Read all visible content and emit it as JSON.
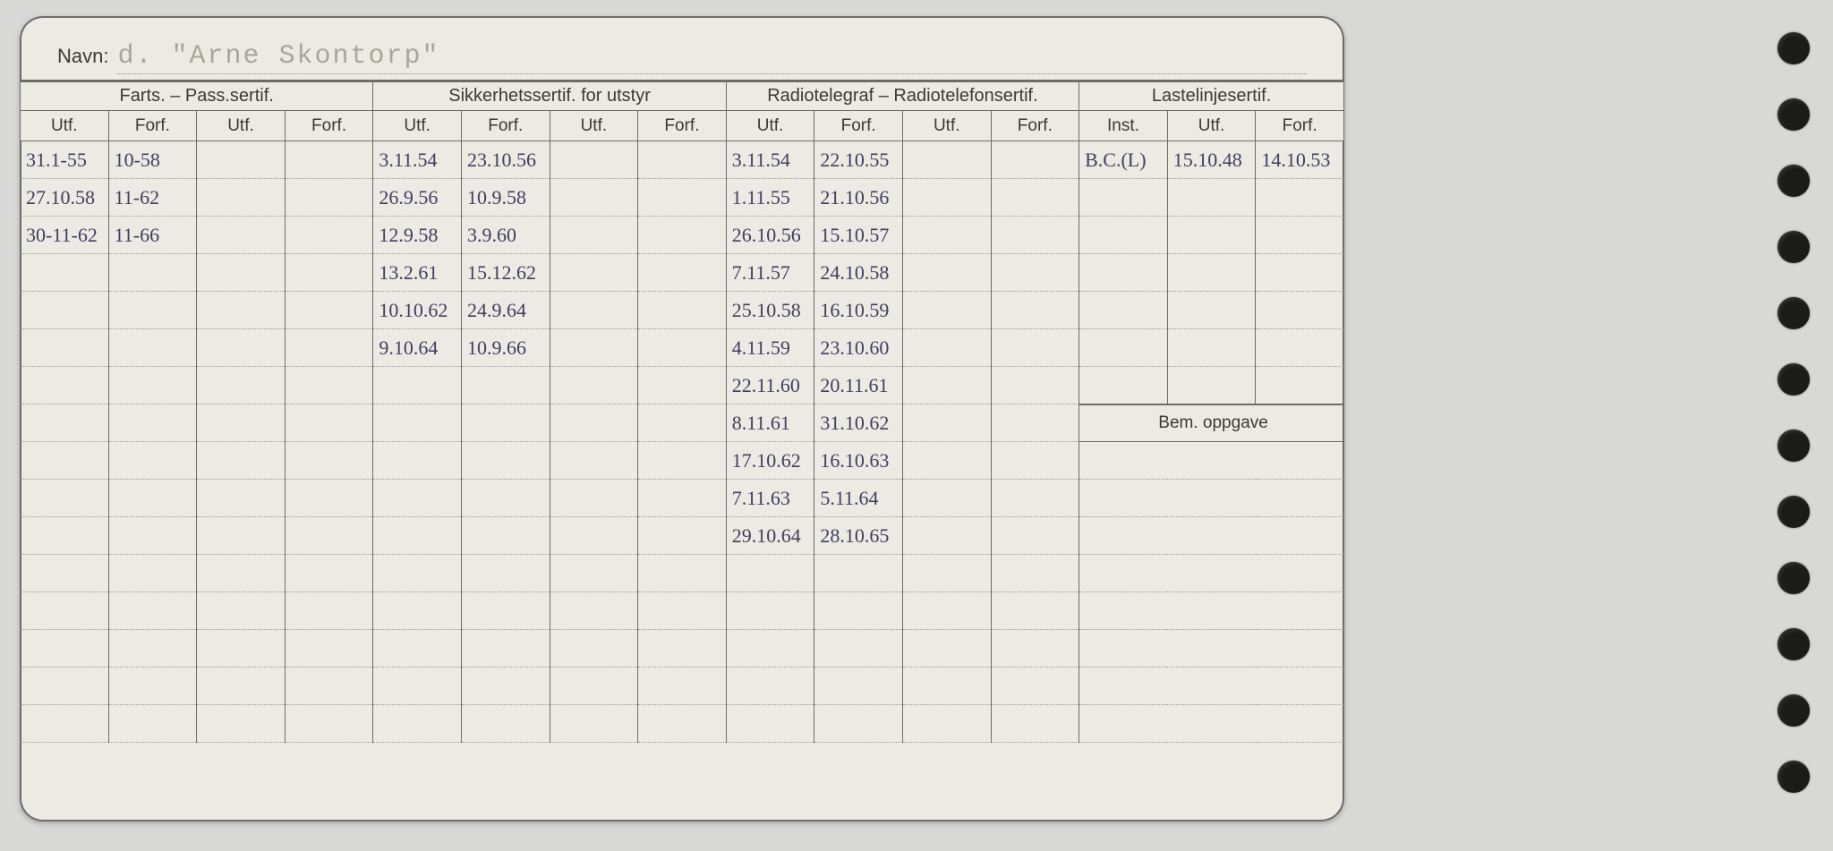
{
  "card": {
    "name_label": "Navn:",
    "name_value": "d.  \"Arne Skontorp\"",
    "groups": {
      "farts": "Farts. – Pass.sertif.",
      "sikker": "Sikkerhetssertif. for utstyr",
      "radio": "Radiotelegraf – Radiotelefonsertif.",
      "laste": "Lastelinjesertif."
    },
    "sub": {
      "utf": "Utf.",
      "forf": "Forf.",
      "inst": "Inst."
    },
    "bem": "Bem. oppgave",
    "rows": [
      {
        "f1": "31.1-55",
        "f2": "10-58",
        "f3": "",
        "f4": "",
        "s1": "3.11.54",
        "s2": "23.10.56",
        "s3": "",
        "s4": "",
        "r1": "3.11.54",
        "r2": "22.10.55",
        "r3": "",
        "r4": "",
        "l1": "B.C.(L)",
        "l2": "15.10.48",
        "l3": "14.10.53"
      },
      {
        "f1": "27.10.58",
        "f2": "11-62",
        "f3": "",
        "f4": "",
        "s1": "26.9.56",
        "s2": "10.9.58",
        "s3": "",
        "s4": "",
        "r1": "1.11.55",
        "r2": "21.10.56",
        "r3": "",
        "r4": "",
        "l1": "",
        "l2": "",
        "l3": ""
      },
      {
        "f1": "30-11-62",
        "f2": "11-66",
        "f3": "",
        "f4": "",
        "s1": "12.9.58",
        "s2": "3.9.60",
        "s3": "",
        "s4": "",
        "r1": "26.10.56",
        "r2": "15.10.57",
        "r3": "",
        "r4": "",
        "l1": "",
        "l2": "",
        "l3": ""
      },
      {
        "f1": "",
        "f2": "",
        "f3": "",
        "f4": "",
        "s1": "13.2.61",
        "s2": "15.12.62",
        "s3": "",
        "s4": "",
        "r1": "7.11.57",
        "r2": "24.10.58",
        "r3": "",
        "r4": "",
        "l1": "",
        "l2": "",
        "l3": ""
      },
      {
        "f1": "",
        "f2": "",
        "f3": "",
        "f4": "",
        "s1": "10.10.62",
        "s2": "24.9.64",
        "s3": "",
        "s4": "",
        "r1": "25.10.58",
        "r2": "16.10.59",
        "r3": "",
        "r4": "",
        "l1": "",
        "l2": "",
        "l3": ""
      },
      {
        "f1": "",
        "f2": "",
        "f3": "",
        "f4": "",
        "s1": "9.10.64",
        "s2": "10.9.66",
        "s3": "",
        "s4": "",
        "r1": "4.11.59",
        "r2": "23.10.60",
        "r3": "",
        "r4": "",
        "l1": "",
        "l2": "",
        "l3": ""
      },
      {
        "f1": "",
        "f2": "",
        "f3": "",
        "f4": "",
        "s1": "",
        "s2": "",
        "s3": "",
        "s4": "",
        "r1": "22.11.60",
        "r2": "20.11.61",
        "r3": "",
        "r4": "",
        "l1": "",
        "l2": "",
        "l3": ""
      },
      {
        "f1": "",
        "f2": "",
        "f3": "",
        "f4": "",
        "s1": "",
        "s2": "",
        "s3": "",
        "s4": "",
        "r1": "8.11.61",
        "r2": "31.10.62",
        "r3": "",
        "r4": ""
      },
      {
        "f1": "",
        "f2": "",
        "f3": "",
        "f4": "",
        "s1": "",
        "s2": "",
        "s3": "",
        "s4": "",
        "r1": "17.10.62",
        "r2": "16.10.63",
        "r3": "",
        "r4": ""
      },
      {
        "f1": "",
        "f2": "",
        "f3": "",
        "f4": "",
        "s1": "",
        "s2": "",
        "s3": "",
        "s4": "",
        "r1": "7.11.63",
        "r2": "5.11.64",
        "r3": "",
        "r4": ""
      },
      {
        "f1": "",
        "f2": "",
        "f3": "",
        "f4": "",
        "s1": "",
        "s2": "",
        "s3": "",
        "s4": "",
        "r1": "29.10.64",
        "r2": "28.10.65",
        "r3": "",
        "r4": ""
      },
      {
        "f1": "",
        "f2": "",
        "f3": "",
        "f4": "",
        "s1": "",
        "s2": "",
        "s3": "",
        "s4": "",
        "r1": "",
        "r2": "",
        "r3": "",
        "r4": ""
      },
      {
        "f1": "",
        "f2": "",
        "f3": "",
        "f4": "",
        "s1": "",
        "s2": "",
        "s3": "",
        "s4": "",
        "r1": "",
        "r2": "",
        "r3": "",
        "r4": ""
      },
      {
        "f1": "",
        "f2": "",
        "f3": "",
        "f4": "",
        "s1": "",
        "s2": "",
        "s3": "",
        "s4": "",
        "r1": "",
        "r2": "",
        "r3": "",
        "r4": ""
      },
      {
        "f1": "",
        "f2": "",
        "f3": "",
        "f4": "",
        "s1": "",
        "s2": "",
        "s3": "",
        "s4": "",
        "r1": "",
        "r2": "",
        "r3": "",
        "r4": ""
      },
      {
        "f1": "",
        "f2": "",
        "f3": "",
        "f4": "",
        "s1": "",
        "s2": "",
        "s3": "",
        "s4": "",
        "r1": "",
        "r2": "",
        "r3": "",
        "r4": ""
      }
    ]
  },
  "colors": {
    "page_bg": "#d8d8d6",
    "card_bg": "#eceae3",
    "border": "#6d6d66",
    "ink": "#3f3f5f",
    "typed": "#a7a79a"
  }
}
